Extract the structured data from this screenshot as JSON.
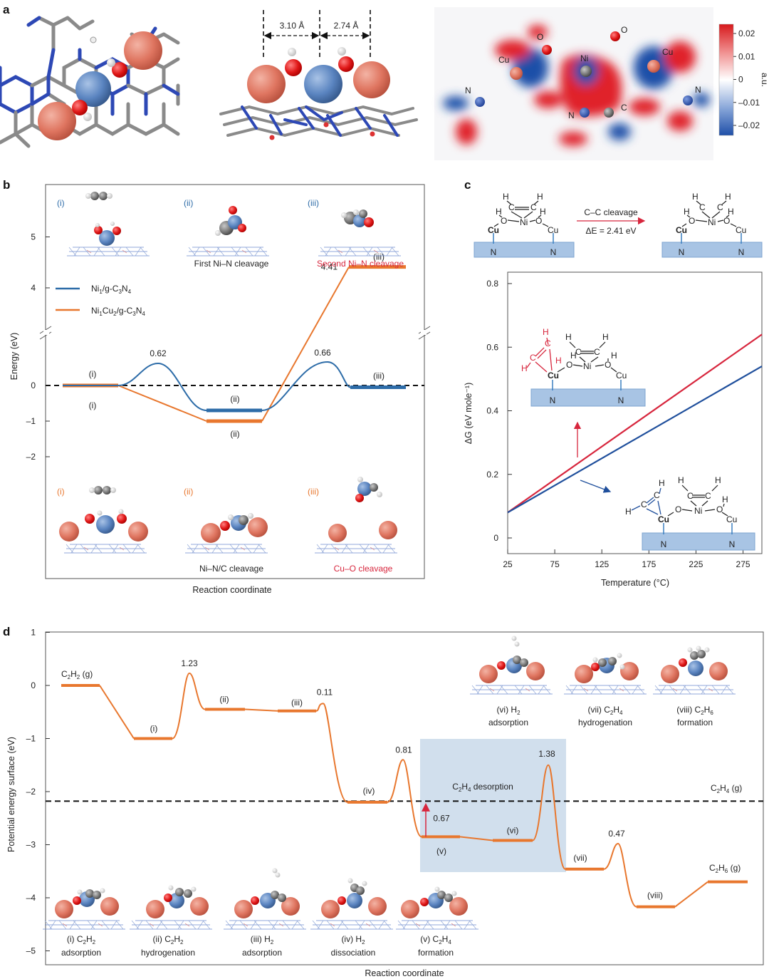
{
  "panel_a": {
    "letter": "a",
    "dist_1": "3.10 Å",
    "dist_2": "2.74 Å",
    "map_labels": {
      "cu_left": "Cu",
      "cu_right": "Cu",
      "o_left": "O",
      "o_right": "O",
      "ni": "Ni",
      "n_left": "N",
      "n_right": "N",
      "n_bottom": "N",
      "c": "C"
    },
    "colorbar_ticks": [
      "0.02",
      "0.01",
      "0",
      "–0.01",
      "–0.02"
    ],
    "colorbar_unit": "a.u.",
    "colors": {
      "positive": "#e0202a",
      "negative": "#1f4fa8"
    }
  },
  "panel_b": {
    "letter": "b",
    "ylabel": "Energy (eV)",
    "xlabel": "Reaction coordinate",
    "upper_ticks": [
      "5",
      "4"
    ],
    "lower_ticks": [
      "0",
      "–1",
      "–2"
    ],
    "legend": [
      "Ni1/g-C3N4",
      "Ni1Cu2/g-C3N4"
    ],
    "top_states": [
      "(i)",
      "(ii)",
      "(iii)"
    ],
    "top_captions": [
      "First Ni–N cleavage",
      "Second Ni–N cleavage"
    ],
    "bottom_states": [
      "(i)",
      "(ii)",
      "(iii)"
    ],
    "bottom_captions": [
      "Ni–N/C cleavage",
      "Cu–O cleavage"
    ],
    "curve_labels": {
      "blue_i": "(i)",
      "blue_ii": "(ii)",
      "blue_iii": "(iii)",
      "orange_i": "(i)",
      "orange_ii": "(ii)",
      "orange_iii": "(iii)"
    },
    "value_labels": {
      "blue_ts1": "0.62",
      "blue_ts2": "0.66",
      "orange_final": "4.41"
    },
    "colors": {
      "blue": "#2d6ca8",
      "orange": "#e8772e"
    }
  },
  "panel_c": {
    "letter": "c",
    "scheme_arrow_label": "C–C cleavage",
    "scheme_energy": "ΔE = 2.41 eV",
    "xlabel": "Temperature (°C)",
    "ylabel": "ΔG (eV mole⁻¹)",
    "x_ticks": [
      "25",
      "75",
      "125",
      "175",
      "225",
      "275"
    ],
    "y_ticks": [
      "0.8",
      "0.6",
      "0.4",
      "0.2",
      "0"
    ],
    "atoms": {
      "h": "H",
      "c": "C",
      "o": "O",
      "ni": "Ni",
      "cu": "Cu",
      "n": "N"
    },
    "colors": {
      "red": "#d7263d",
      "blue": "#1f4f9c"
    }
  },
  "panel_d": {
    "letter": "d",
    "ylabel": "Potential energy surface (eV)",
    "xlabel": "Reaction coordinate",
    "y_ticks": [
      "1",
      "0",
      "–1",
      "–2",
      "–3",
      "–4",
      "–5"
    ],
    "gas_labels": {
      "c2h2": "C2H2 (g)",
      "c2h4": "C2H4 (g)",
      "c2h6": "C2H6 (g)"
    },
    "desorption_label": "C2H4 desorption",
    "state_labels": [
      "(i)",
      "(ii)",
      "(iii)",
      "(iv)",
      "(v)",
      "(vi)",
      "(vii)",
      "(viii)"
    ],
    "ts_values": [
      "1.23",
      "0.11",
      "0.81",
      "0.67",
      "1.38",
      "0.47"
    ],
    "bottom_captions": [
      {
        "line1": "(i) C2H2",
        "line2": "adsorption"
      },
      {
        "line1": "(ii) C2H2",
        "line2": "hydrogenation"
      },
      {
        "line1": "(iii) H2",
        "line2": "adsorption"
      },
      {
        "line1": "(iv) H2",
        "line2": "dissociation"
      },
      {
        "line1": "(v) C2H4",
        "line2": "formation"
      }
    ],
    "top_captions": [
      {
        "line1": "(vi) H2",
        "line2": "adsorption"
      },
      {
        "line1": "(vii) C2H4",
        "line2": "hydrogenation"
      },
      {
        "line1": "(viii) C2H6",
        "line2": "formation"
      }
    ],
    "colors": {
      "orange": "#e8772e",
      "highlight": "#c9d9ea"
    }
  },
  "chart_data": [
    {
      "type": "line",
      "panel": "b",
      "xlabel": "Reaction coordinate",
      "ylabel": "Energy (eV)",
      "series": [
        {
          "name": "Ni1/g-C3N4",
          "states": [
            "(i)",
            "TS",
            "(ii)",
            "TS",
            "(iii)"
          ],
          "values": [
            0,
            0.62,
            -0.7,
            0.66,
            -0.05
          ]
        },
        {
          "name": "Ni1Cu2/g-C3N4",
          "states": [
            "(i)",
            "(ii)",
            "(iii)"
          ],
          "values": [
            0,
            -1.0,
            4.41
          ]
        }
      ]
    },
    {
      "type": "line",
      "panel": "c",
      "xlabel": "Temperature (°C)",
      "ylabel": "ΔG (eV mole⁻¹)",
      "xlim": [
        25,
        295
      ],
      "ylim": [
        0,
        0.8
      ],
      "series": [
        {
          "name": "red",
          "x": [
            25,
            295
          ],
          "values": [
            0.08,
            0.64
          ]
        },
        {
          "name": "blue",
          "x": [
            25,
            295
          ],
          "values": [
            0.08,
            0.54
          ]
        }
      ]
    },
    {
      "type": "line",
      "panel": "d",
      "xlabel": "Reaction coordinate",
      "ylabel": "Potential energy surface (eV)",
      "ylim": [
        -5,
        1
      ],
      "states": [
        "C2H2 (g)",
        "(i)",
        "TS 1.23",
        "(ii)",
        "(iii)",
        "TS 0.11",
        "(iv)",
        "TS 0.81",
        "(v)",
        "(vi)",
        "TS 1.38",
        "(vii)",
        "TS 0.47",
        "(viii)",
        "C2H6 (g)"
      ],
      "values": [
        0,
        -1.0,
        0.23,
        -0.45,
        -0.48,
        -0.34,
        -2.2,
        -1.4,
        -2.85,
        -2.92,
        -1.5,
        -3.46,
        -2.98,
        -4.17,
        -3.7
      ],
      "reference": {
        "label": "C2H4 (g)",
        "value": -2.18
      },
      "annotation": {
        "label": "0.67",
        "from": -2.85,
        "to": -2.18
      }
    }
  ]
}
